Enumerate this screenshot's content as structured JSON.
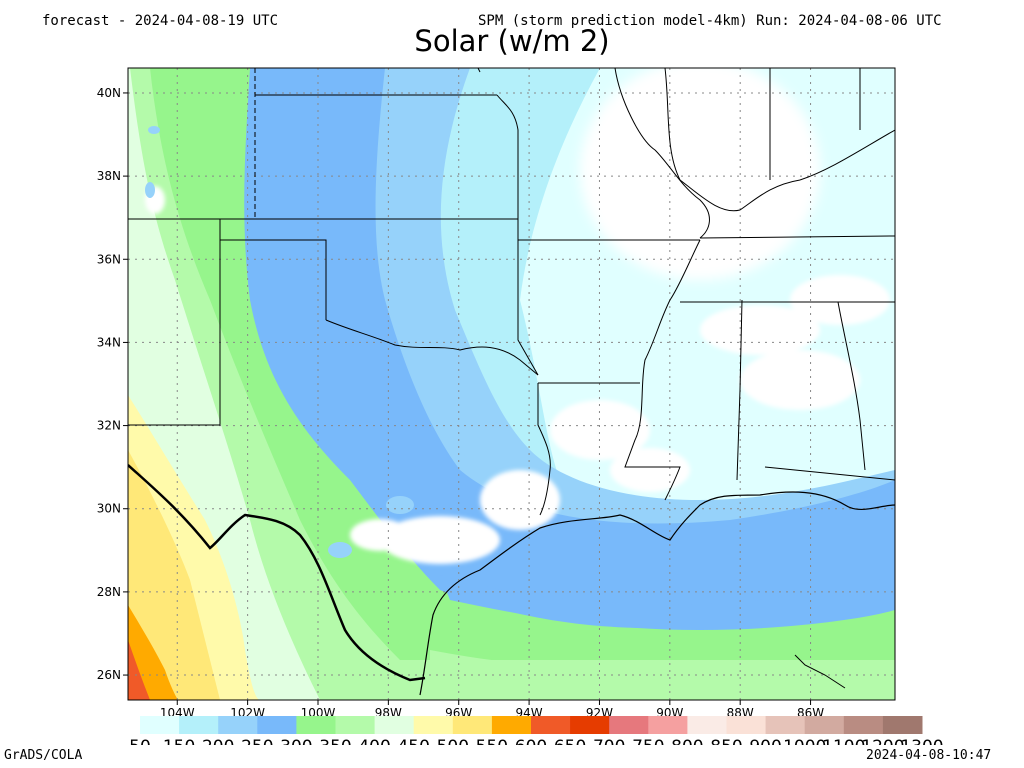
{
  "header": {
    "left": "forecast - 2024-04-08-19 UTC",
    "right": "SPM (storm prediction model-4km) Run: 2024-04-08-06 UTC",
    "title": "Solar (w/m 2)"
  },
  "footer": {
    "left": "GrADS/COLA",
    "right": "2024-04-08-10:47"
  },
  "map": {
    "lat_range": [
      25.4,
      40.6
    ],
    "lon_range": [
      -105.4,
      -83.6
    ],
    "lat_ticks": [
      {
        "value": 40,
        "label": "40N"
      },
      {
        "value": 38,
        "label": "38N"
      },
      {
        "value": 36,
        "label": "36N"
      },
      {
        "value": 34,
        "label": "34N"
      },
      {
        "value": 32,
        "label": "32N"
      },
      {
        "value": 30,
        "label": "30N"
      },
      {
        "value": 28,
        "label": "28N"
      },
      {
        "value": 26,
        "label": "26N"
      }
    ],
    "lon_ticks": [
      {
        "value": -104,
        "label": "104W"
      },
      {
        "value": -102,
        "label": "102W"
      },
      {
        "value": -100,
        "label": "100W"
      },
      {
        "value": -98,
        "label": "98W"
      },
      {
        "value": -96,
        "label": "96W"
      },
      {
        "value": -94,
        "label": "94W"
      },
      {
        "value": -92,
        "label": "92W"
      },
      {
        "value": -90,
        "label": "90W"
      },
      {
        "value": -88,
        "label": "88W"
      },
      {
        "value": -86,
        "label": "86W"
      }
    ],
    "grid": true
  },
  "colorbar": {
    "colors": [
      "#e0ffff",
      "#b4f0fa",
      "#96d2fa",
      "#78b9fa",
      "#96f58c",
      "#b4faaa",
      "#e1ffe1",
      "#fffaaa",
      "#ffe878",
      "#ffaa00",
      "#f05a28",
      "#e63c00",
      "#e6787d",
      "#f5a0a0",
      "#faebe6",
      "#fae1d7",
      "#e6c3b9",
      "#d2aaa0",
      "#b98c82",
      "#a0786e"
    ],
    "labels": [
      "50",
      "150",
      "200",
      "250",
      "300",
      "350",
      "400",
      "450",
      "500",
      "550",
      "600",
      "650",
      "700",
      "750",
      "800",
      "850",
      "900",
      "1000",
      "1100",
      "1200",
      "1300"
    ]
  }
}
